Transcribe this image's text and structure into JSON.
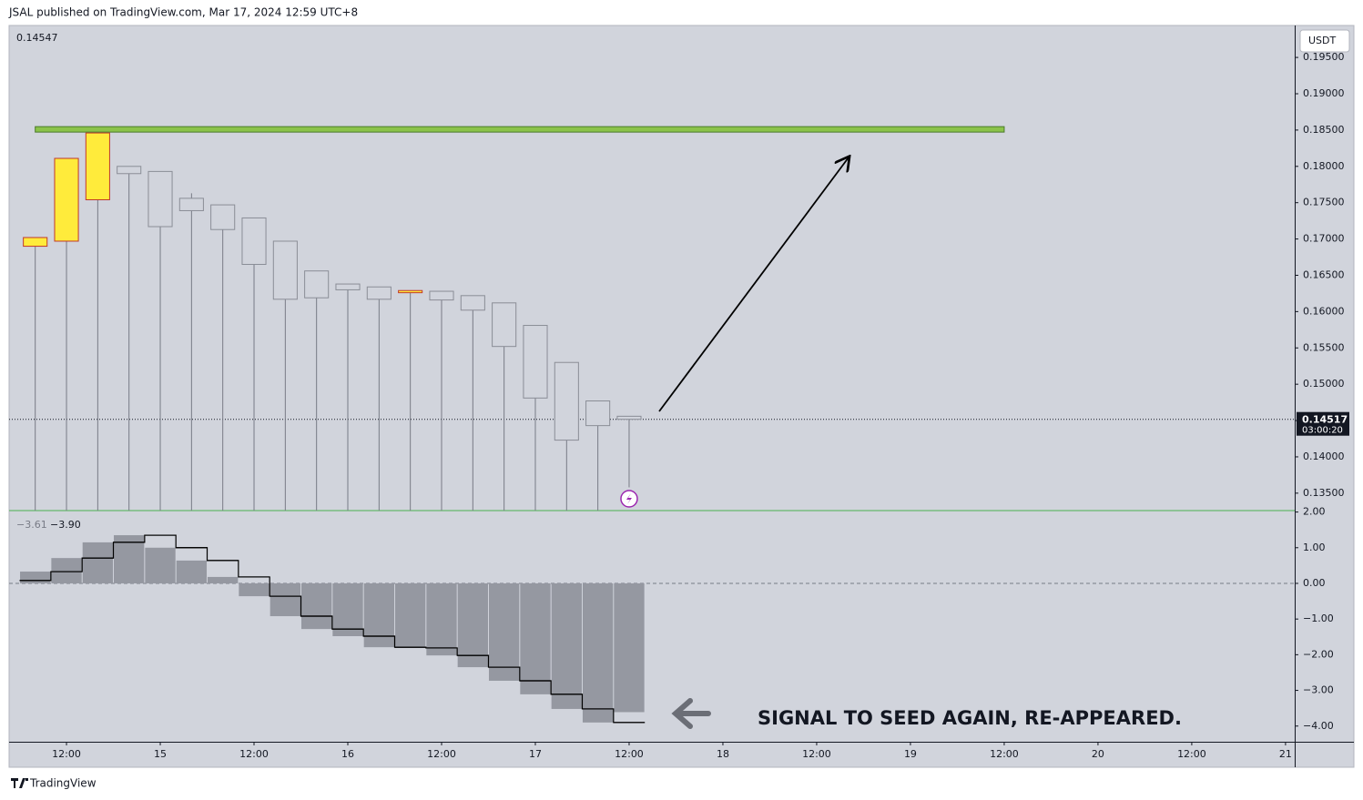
{
  "header": {
    "title": "JSAL published on TradingView.com, Mar 17, 2024 12:59 UTC+8"
  },
  "footer": {
    "brand": "TradingView"
  },
  "annotation": "SIGNAL TO SEED AGAIN, RE-APPEARED.",
  "chart_data": [
    {
      "type": "candlestick",
      "currency": "USDT",
      "top_value": 0.14547,
      "x": [
        14.3333,
        14.5,
        14.6667,
        14.8333,
        15,
        15.1667,
        15.3333,
        15.5,
        15.6667,
        15.8333,
        16,
        16.1667,
        16.3333,
        16.5,
        16.6667,
        16.8333,
        17,
        17.1667,
        17.3333,
        17.5
      ],
      "open": [
        0.169,
        0.1697,
        0.1754,
        0.18,
        0.1793,
        0.1756,
        0.1747,
        0.1729,
        0.1697,
        0.1656,
        0.1638,
        0.1634,
        0.1626,
        0.1628,
        0.1622,
        0.1612,
        0.1581,
        0.153,
        0.1477,
        0.14559
      ],
      "high": [
        0.1702,
        0.1811,
        0.1846,
        0.18,
        0.1793,
        0.1763,
        0.1747,
        0.1729,
        0.1697,
        0.1656,
        0.1638,
        0.1634,
        0.1629,
        0.1628,
        0.1622,
        0.1612,
        0.1581,
        0.153,
        0.1477,
        0.14559
      ],
      "low": [
        0.1326,
        0.1326,
        0.1326,
        0.1326,
        0.1326,
        0.1326,
        0.1326,
        0.1326,
        0.1326,
        0.1326,
        0.1326,
        0.1326,
        0.1326,
        0.1326,
        0.1326,
        0.1326,
        0.1326,
        0.1326,
        0.1326,
        0.1358
      ],
      "close": [
        0.1702,
        0.1811,
        0.1846,
        0.179,
        0.1717,
        0.1739,
        0.1713,
        0.1665,
        0.1617,
        0.1619,
        0.163,
        0.1617,
        0.1629,
        0.1616,
        0.1602,
        0.1552,
        0.1481,
        0.1423,
        0.1443,
        0.14517
      ],
      "up_color": "#ffeb3b",
      "up_border": "#c0392b",
      "down_border": "#8a8d96",
      "wick_color": "#787b86",
      "xlim": [
        14.194,
        21.049
      ],
      "xticks": [
        {
          "value": 14.5,
          "label": "12:00"
        },
        15,
        {
          "value": 15.5,
          "label": "12:00"
        },
        16,
        {
          "value": 16.5,
          "label": "12:00"
        },
        17,
        {
          "value": 17.5,
          "label": "12:00"
        },
        18,
        {
          "value": 18.5,
          "label": "12:00"
        },
        19,
        {
          "value": 19.5,
          "label": "12:00"
        },
        20,
        {
          "value": 20.5,
          "label": "12:00"
        },
        21
      ],
      "ylim": [
        0.1326,
        0.1994
      ],
      "yticks": [
        {
          "value": 0.135,
          "label": "0.13500"
        },
        {
          "value": 0.14,
          "label": "0.14000"
        },
        {
          "value": 0.145,
          "label": "0.14500"
        },
        {
          "value": 0.15,
          "label": "0.15000"
        },
        {
          "value": 0.155,
          "label": "0.15500"
        },
        {
          "value": 0.16,
          "label": "0.16000"
        },
        {
          "value": 0.165,
          "label": "0.16500"
        },
        {
          "value": 0.17,
          "label": "0.17000"
        },
        {
          "value": 0.175,
          "label": "0.17500"
        },
        {
          "value": 0.18,
          "label": "0.18000"
        },
        {
          "value": 0.185,
          "label": "0.18500"
        },
        {
          "value": 0.19,
          "label": "0.19000"
        },
        {
          "value": 0.195,
          "label": "0.19500"
        }
      ],
      "grid": false,
      "zone": {
        "low": 0.18472,
        "high": 0.18547,
        "x_start": 14.3333,
        "x_end": 19.5,
        "color": "#8bc34a"
      },
      "last_price": 0.14517,
      "countdown": "03:00:20"
    },
    {
      "type": "histogram-step",
      "series": [
        {
          "style": "bar",
          "color": "#9598a1",
          "values": [
            0.33,
            0.71,
            1.15,
            1.35,
            1.0,
            0.64,
            0.18,
            -0.36,
            -0.92,
            -1.28,
            -1.48,
            -1.79,
            -1.81,
            -2.02,
            -2.35,
            -2.73,
            -3.11,
            -3.52,
            -3.9,
            -3.61
          ],
          "last_label": "−3.61"
        },
        {
          "style": "step",
          "color": "#000000",
          "values": [
            0.08,
            0.33,
            0.71,
            1.15,
            1.35,
            1.0,
            0.64,
            0.18,
            -0.36,
            -0.92,
            -1.28,
            -1.48,
            -1.79,
            -1.81,
            -2.02,
            -2.35,
            -2.73,
            -3.11,
            -3.52,
            -3.9
          ],
          "last_label": "−3.90"
        }
      ],
      "ylim": [
        -4.44,
        2.015
      ],
      "yticks": [
        {
          "value": 2,
          "label": "2.00"
        },
        {
          "value": 1,
          "label": "1.00"
        },
        {
          "value": 0,
          "label": "0.00"
        },
        {
          "value": -1,
          "label": "−1.00"
        },
        {
          "value": -2,
          "label": "−2.00"
        },
        {
          "value": -3,
          "label": "−3.00"
        },
        {
          "value": -4,
          "label": "−4.00"
        }
      ],
      "grid": false
    }
  ]
}
